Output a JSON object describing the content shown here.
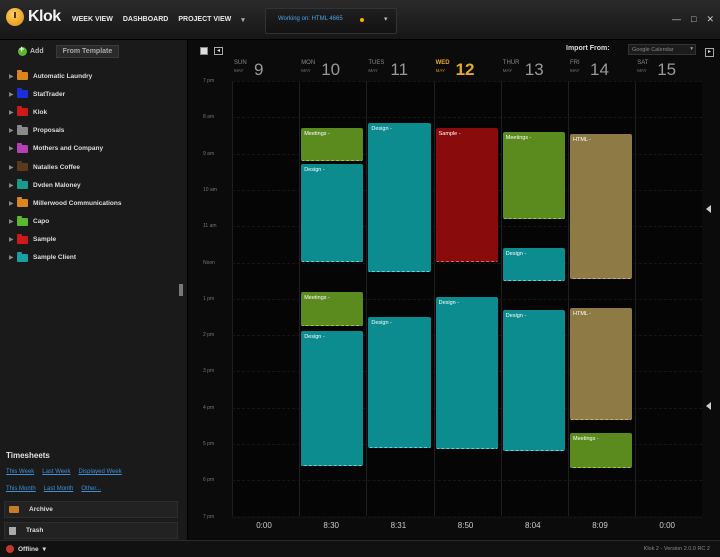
{
  "app": {
    "name": "Klok",
    "nav": [
      "WEEK VIEW",
      "DASHBOARD",
      "PROJECT VIEW"
    ],
    "working_on": "Working on: HTML 4665",
    "window_buttons": [
      "—",
      "□",
      "✕"
    ]
  },
  "sidebar": {
    "add_label": "Add",
    "template_label": "From Template",
    "projects": [
      {
        "name": "Automatic Laundry",
        "color": "#d9861f"
      },
      {
        "name": "StatTrader",
        "color": "#1c2fd6"
      },
      {
        "name": "Klok",
        "color": "#cc1a1a"
      },
      {
        "name": "Proposals",
        "color": "#8a8a8a"
      },
      {
        "name": "Mothers and Company",
        "color": "#b53fb5"
      },
      {
        "name": "Natalies Coffee",
        "color": "#5a3a1a"
      },
      {
        "name": "Dvden Maloney",
        "color": "#1a9a8a"
      },
      {
        "name": "Millerwood Communications",
        "color": "#d9861f"
      },
      {
        "name": "Capo",
        "color": "#59b82f"
      },
      {
        "name": "Sample",
        "color": "#cc1a1a"
      },
      {
        "name": "Sample Client",
        "color": "#1aa0a0"
      }
    ],
    "timesheets_title": "Timesheets",
    "timesheet_links_row1": [
      "This Week",
      "Last Week",
      "Displayed Week"
    ],
    "timesheet_links_row2": [
      "This Month",
      "Last Month",
      "Other..."
    ],
    "archive_label": "Archive",
    "trash_label": "Trash",
    "status": "Offline"
  },
  "calendar": {
    "import_label": "Import From:",
    "import_source": "Google Calendar",
    "days": [
      {
        "dow": "SUN",
        "month": "MAY",
        "num": "9",
        "total": "0:00"
      },
      {
        "dow": "MON",
        "month": "MAY",
        "num": "10",
        "total": "8:30"
      },
      {
        "dow": "TUES",
        "month": "MAY",
        "num": "11",
        "total": "8:31"
      },
      {
        "dow": "WED",
        "month": "MAY",
        "num": "12",
        "total": "8:50",
        "today": true
      },
      {
        "dow": "THUR",
        "month": "MAY",
        "num": "13",
        "total": "8:04"
      },
      {
        "dow": "FRI",
        "month": "MAY",
        "num": "14",
        "total": "8:09"
      },
      {
        "dow": "SAT",
        "month": "MAY",
        "num": "15",
        "total": "0:00"
      }
    ],
    "hours": [
      "7 pm",
      "8 am",
      "9 am",
      "10 am",
      "11 am",
      "Noon",
      "1 pm",
      "2 pm",
      "3 pm",
      "4 pm",
      "5 pm",
      "6 pm",
      "7 pm"
    ],
    "events": [
      {
        "day": 1,
        "label": "Meetings -",
        "type": "meet",
        "start": 8.3,
        "end": 9.2
      },
      {
        "day": 1,
        "label": "Design -",
        "type": "design",
        "start": 9.3,
        "end": 12.0
      },
      {
        "day": 1,
        "label": "Meetings -",
        "type": "meet",
        "start": 12.8,
        "end": 13.75
      },
      {
        "day": 1,
        "label": "Design -",
        "type": "design",
        "start": 13.9,
        "end": 17.6
      },
      {
        "day": 2,
        "label": "Design -",
        "type": "design",
        "start": 8.15,
        "end": 12.25
      },
      {
        "day": 2,
        "label": "Design -",
        "type": "design",
        "start": 13.5,
        "end": 17.1
      },
      {
        "day": 3,
        "label": "Sample -",
        "type": "sample",
        "start": 8.3,
        "end": 12.0
      },
      {
        "day": 3,
        "label": "Design -",
        "type": "design",
        "start": 12.95,
        "end": 17.15
      },
      {
        "day": 4,
        "label": "Meetings -",
        "type": "meet",
        "start": 8.4,
        "end": 10.8
      },
      {
        "day": 4,
        "label": "Design -",
        "type": "design",
        "start": 11.6,
        "end": 12.5
      },
      {
        "day": 4,
        "label": "Design -",
        "type": "design",
        "start": 13.3,
        "end": 17.2
      },
      {
        "day": 5,
        "label": "HTML -",
        "type": "html",
        "start": 8.45,
        "end": 12.45
      },
      {
        "day": 5,
        "label": "HTML -",
        "type": "html",
        "start": 13.25,
        "end": 16.35
      },
      {
        "day": 5,
        "label": "Meetings -",
        "type": "meet",
        "start": 16.7,
        "end": 17.65
      }
    ]
  },
  "version": "Klok 2 - Version 2.0.0 RC 2"
}
